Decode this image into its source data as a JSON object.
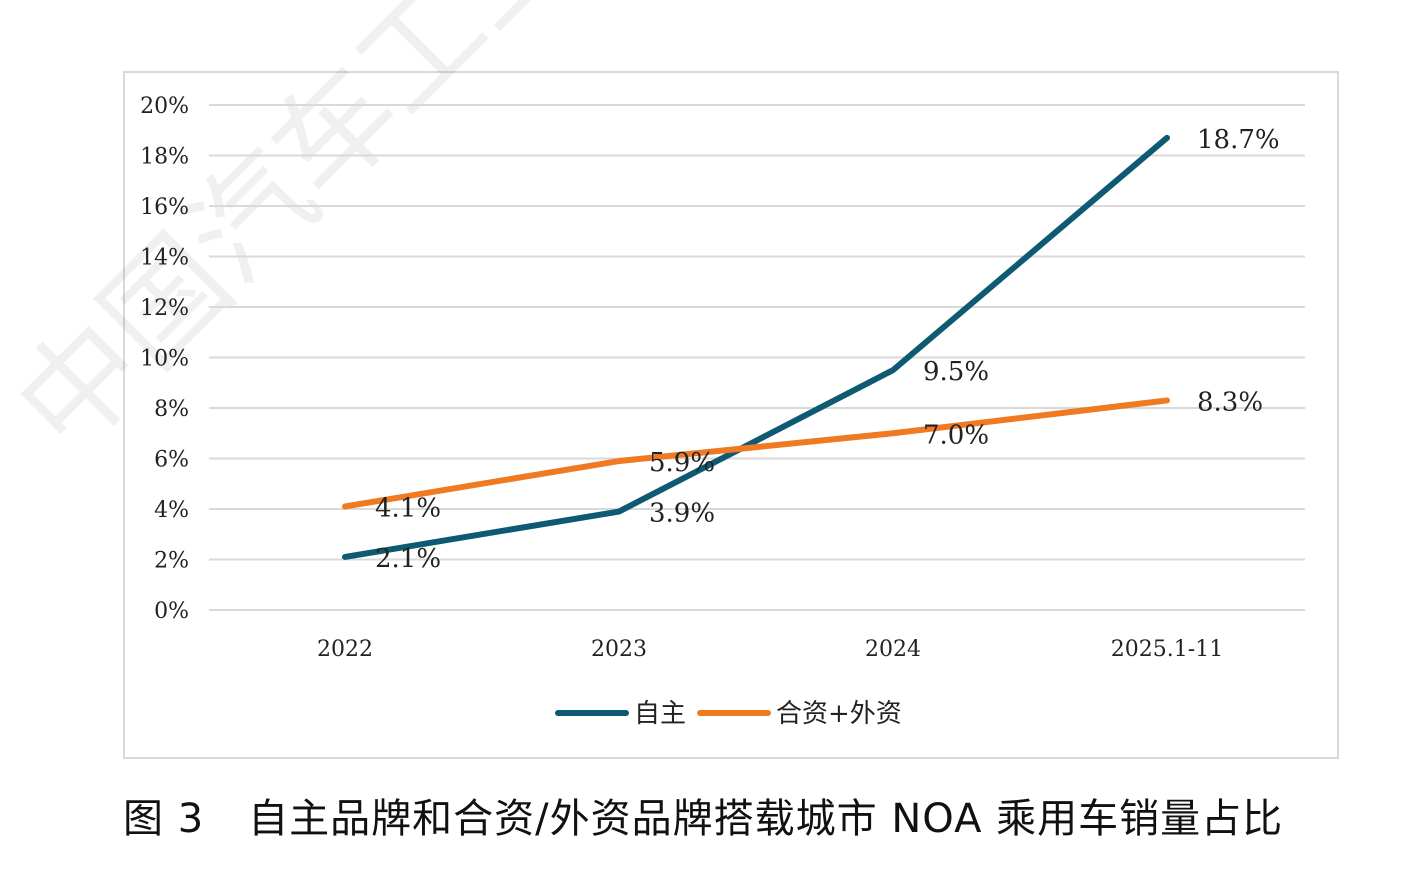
{
  "chart_data": {
    "type": "line",
    "categories": [
      "2022",
      "2023",
      "2024",
      "2025.1-11"
    ],
    "series": [
      {
        "name": "自主",
        "color": "#0f5a73",
        "values": [
          2.1,
          3.9,
          9.5,
          18.7
        ],
        "labels": [
          "2.1%",
          "3.9%",
          "9.5%",
          "18.7%"
        ]
      },
      {
        "name": "合资+外资",
        "color": "#f07a22",
        "values": [
          4.1,
          5.9,
          7.0,
          8.3
        ],
        "labels": [
          "4.1%",
          "5.9%",
          "7.0%",
          "8.3%"
        ]
      }
    ],
    "ylim": [
      0,
      20
    ],
    "yticks": [
      0,
      2,
      4,
      6,
      8,
      10,
      12,
      14,
      16,
      18,
      20
    ],
    "ytick_labels": [
      "0%",
      "2%",
      "4%",
      "6%",
      "8%",
      "10%",
      "12%",
      "14%",
      "16%",
      "18%",
      "20%"
    ],
    "grid": true,
    "legend": "bottom-center"
  },
  "caption": {
    "number": "图 3",
    "title": "自主品牌和合资/外资品牌搭载城市 NOA 乘用车销量占比"
  },
  "watermark": "中国汽车工业经济技术"
}
